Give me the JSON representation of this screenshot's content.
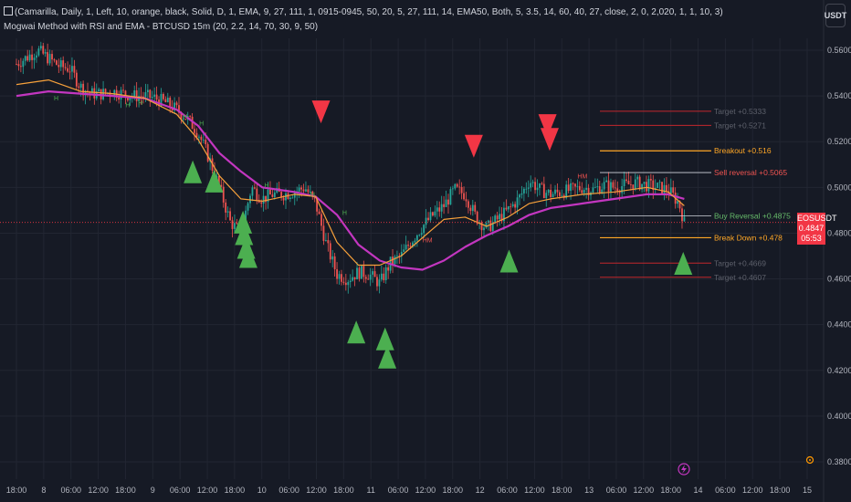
{
  "header": {
    "line1": "(Camarilla, Daily, 1, Left, 10, orange, black, Solid, D, 1, EMA, 9, 27, 111, 1, 0915-0945, 50, 20, 5, 27, 111, 14, EMA50, Both, 5, 3.5, 14, 60, 40, 27, close, 2, 0, 2,020, 1, 1, 10, 3)",
    "line2": "Mogwai Method with RSI and EMA - BTCUSD 15m (20, 2.2, 14, 70, 30, 9, 50)"
  },
  "toolbar": {
    "currency": "USDT"
  },
  "price_tag": {
    "symbol": "EOSUSDT",
    "value": "0.4847",
    "countdown": "05:53"
  },
  "colors": {
    "background": "#161a25",
    "grid": "#222632",
    "candle_up": "#26a69a",
    "candle_down": "#ef5350",
    "ema_fast": "#f7a13b",
    "ema_slow": "#c336c0",
    "buy_signal": "#4caf50",
    "sell_signal": "#f23645",
    "target_line": "#c2272d",
    "breakout_line": "#ffa726",
    "price_line": "#f23645"
  },
  "icons": {
    "lightning": "lightning-icon",
    "settings": "settings-icon"
  },
  "chart_data": {
    "type": "candlestick",
    "ylim": [
      0.375,
      0.57
    ],
    "y_ticks": [
      "0.5600",
      "0.5400",
      "0.5200",
      "0.5000",
      "0.4800",
      "0.4600",
      "0.4400",
      "0.4200",
      "0.4000",
      "0.3800"
    ],
    "x_ticks": [
      "18:00",
      "8",
      "06:00",
      "12:00",
      "18:00",
      "9",
      "06:00",
      "12:00",
      "18:00",
      "10",
      "06:00",
      "12:00",
      "18:00",
      "11",
      "06:00",
      "12:00",
      "18:00",
      "12",
      "06:00",
      "12:00",
      "18:00",
      "13",
      "06:00",
      "12:00",
      "18:00",
      "14",
      "06:00",
      "12:00",
      "18:00",
      "15"
    ],
    "price_path": [
      [
        0,
        0.554
      ],
      [
        2,
        0.56
      ],
      [
        4,
        0.553
      ],
      [
        5,
        0.552
      ],
      [
        6,
        0.544
      ],
      [
        7,
        0.541
      ],
      [
        8,
        0.541
      ],
      [
        9,
        0.542
      ],
      [
        10,
        0.541
      ],
      [
        11,
        0.54
      ],
      [
        12,
        0.54
      ],
      [
        13,
        0.539
      ],
      [
        14,
        0.537
      ],
      [
        15,
        0.534
      ],
      [
        16,
        0.53
      ],
      [
        17,
        0.524
      ],
      [
        18,
        0.513
      ],
      [
        19,
        0.5
      ],
      [
        20,
        0.485
      ],
      [
        21,
        0.48
      ],
      [
        22,
        0.5
      ],
      [
        23,
        0.495
      ],
      [
        24,
        0.497
      ],
      [
        25,
        0.497
      ],
      [
        26,
        0.498
      ],
      [
        27,
        0.5
      ],
      [
        28,
        0.493
      ],
      [
        29,
        0.475
      ],
      [
        30,
        0.462
      ],
      [
        31,
        0.46
      ],
      [
        32,
        0.463
      ],
      [
        33,
        0.462
      ],
      [
        34,
        0.458
      ],
      [
        35,
        0.467
      ],
      [
        36,
        0.47
      ],
      [
        37,
        0.477
      ],
      [
        38,
        0.483
      ],
      [
        39,
        0.488
      ],
      [
        40,
        0.492
      ],
      [
        41,
        0.499
      ],
      [
        42,
        0.497
      ],
      [
        43,
        0.487
      ],
      [
        44,
        0.482
      ],
      [
        45,
        0.486
      ],
      [
        46,
        0.49
      ],
      [
        47,
        0.495
      ],
      [
        48,
        0.503
      ],
      [
        49,
        0.499
      ],
      [
        50,
        0.497
      ],
      [
        51,
        0.498
      ],
      [
        52,
        0.499
      ],
      [
        53,
        0.5
      ],
      [
        54,
        0.499
      ],
      [
        55,
        0.501
      ],
      [
        56,
        0.5
      ],
      [
        57,
        0.501
      ],
      [
        58,
        0.502
      ],
      [
        59,
        0.501
      ],
      [
        60,
        0.5
      ],
      [
        61,
        0.499
      ],
      [
        62,
        0.493
      ],
      [
        62.5,
        0.4847
      ]
    ],
    "ema_fast": [
      [
        0,
        0.545
      ],
      [
        3,
        0.547
      ],
      [
        6,
        0.542
      ],
      [
        9,
        0.541
      ],
      [
        12,
        0.539
      ],
      [
        15,
        0.532
      ],
      [
        17,
        0.521
      ],
      [
        19,
        0.505
      ],
      [
        21,
        0.495
      ],
      [
        23,
        0.494
      ],
      [
        26,
        0.497
      ],
      [
        28,
        0.496
      ],
      [
        30,
        0.476
      ],
      [
        32,
        0.466
      ],
      [
        34,
        0.466
      ],
      [
        36,
        0.47
      ],
      [
        38,
        0.478
      ],
      [
        40,
        0.486
      ],
      [
        42,
        0.487
      ],
      [
        44,
        0.483
      ],
      [
        46,
        0.487
      ],
      [
        48,
        0.493
      ],
      [
        50,
        0.495
      ],
      [
        53,
        0.497
      ],
      [
        56,
        0.498
      ],
      [
        59,
        0.5
      ],
      [
        61,
        0.498
      ],
      [
        62.5,
        0.492
      ]
    ],
    "ema_slow": [
      [
        0,
        0.54
      ],
      [
        3,
        0.542
      ],
      [
        6,
        0.541
      ],
      [
        9,
        0.54
      ],
      [
        12,
        0.539
      ],
      [
        15,
        0.534
      ],
      [
        17,
        0.527
      ],
      [
        19,
        0.515
      ],
      [
        21,
        0.507
      ],
      [
        23,
        0.5
      ],
      [
        26,
        0.498
      ],
      [
        28,
        0.496
      ],
      [
        30,
        0.488
      ],
      [
        32,
        0.475
      ],
      [
        34,
        0.468
      ],
      [
        36,
        0.465
      ],
      [
        38,
        0.464
      ],
      [
        40,
        0.468
      ],
      [
        42,
        0.474
      ],
      [
        44,
        0.479
      ],
      [
        46,
        0.483
      ],
      [
        48,
        0.488
      ],
      [
        50,
        0.491
      ],
      [
        53,
        0.493
      ],
      [
        56,
        0.495
      ],
      [
        59,
        0.497
      ],
      [
        61,
        0.497
      ],
      [
        62.5,
        0.495
      ]
    ],
    "x_range": [
      0,
      78
    ],
    "buy_signals": [
      [
        16.5,
        0.505
      ],
      [
        18.5,
        0.501
      ],
      [
        21.2,
        0.483
      ],
      [
        21.3,
        0.478
      ],
      [
        21.5,
        0.472
      ],
      [
        21.7,
        0.468
      ],
      [
        31.8,
        0.435
      ],
      [
        34.5,
        0.432
      ],
      [
        34.7,
        0.424
      ],
      [
        46.1,
        0.466
      ],
      [
        62.4,
        0.465
      ]
    ],
    "sell_signals": [
      [
        28.5,
        0.534
      ],
      [
        42.8,
        0.519
      ],
      [
        49.7,
        0.528
      ],
      [
        49.9,
        0.522
      ]
    ],
    "hm_labels": [
      [
        38,
        0.476
      ],
      [
        52.5,
        0.504
      ]
    ],
    "h_markers": [
      [
        3.5,
        0.538
      ],
      [
        10.2,
        0.535
      ],
      [
        11.4,
        0.536
      ],
      [
        15.6,
        0.53
      ],
      [
        17.1,
        0.527
      ],
      [
        23.2,
        0.5
      ],
      [
        27.5,
        0.496
      ],
      [
        30.5,
        0.488
      ]
    ],
    "levels": [
      {
        "label": "Target +0.5333",
        "value": 0.5333,
        "kind": "target"
      },
      {
        "label": "Target +0.5271",
        "value": 0.5271,
        "kind": "target"
      },
      {
        "label": "Breakout +0.516",
        "value": 0.516,
        "kind": "breakout"
      },
      {
        "label": "Sell reversal +0.5065",
        "value": 0.5065,
        "kind": "sell"
      },
      {
        "label": "Buy Reversal +0.4875",
        "value": 0.4875,
        "kind": "buy"
      },
      {
        "label": "Break Down +0.478",
        "value": 0.478,
        "kind": "breakdown"
      },
      {
        "label": "Target +0.4669",
        "value": 0.4669,
        "kind": "target"
      },
      {
        "label": "Target +0.4607",
        "value": 0.4607,
        "kind": "target"
      }
    ],
    "last_price": 0.4847
  }
}
